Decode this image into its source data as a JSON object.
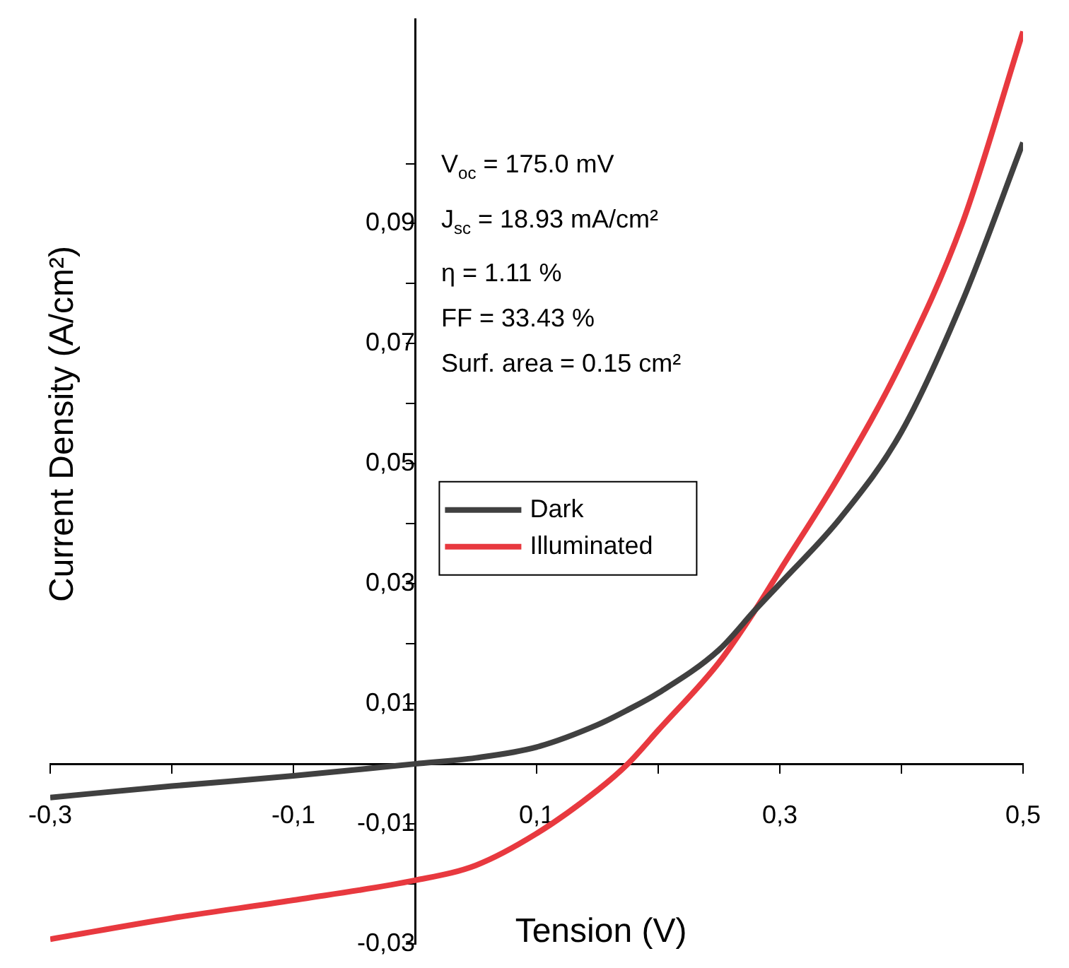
{
  "chart_data": {
    "type": "line",
    "xlabel": "Tension (V)",
    "ylabel": "Current Density (A/cm²)",
    "xlim": [
      -0.3,
      0.5
    ],
    "ylim": [
      -0.03,
      0.124
    ],
    "xticks": [
      {
        "value": -0.3,
        "label": "-0,3"
      },
      {
        "value": -0.2,
        "label": null
      },
      {
        "value": -0.1,
        "label": "-0,1"
      },
      {
        "value": 0,
        "label": null
      },
      {
        "value": 0.1,
        "label": "0,1"
      },
      {
        "value": 0.2,
        "label": null
      },
      {
        "value": 0.3,
        "label": "0,3"
      },
      {
        "value": 0.4,
        "label": null
      },
      {
        "value": 0.5,
        "label": "0,5"
      }
    ],
    "yticks": [
      {
        "value": -0.03,
        "label": "-0,03"
      },
      {
        "value": -0.02,
        "label": null
      },
      {
        "value": -0.01,
        "label": "-0,01"
      },
      {
        "value": 0,
        "label": null
      },
      {
        "value": 0.01,
        "label": "0,01"
      },
      {
        "value": 0.02,
        "label": null
      },
      {
        "value": 0.03,
        "label": "0,03"
      },
      {
        "value": 0.04,
        "label": null
      },
      {
        "value": 0.05,
        "label": "0,05"
      },
      {
        "value": 0.06,
        "label": null
      },
      {
        "value": 0.07,
        "label": "0,07"
      },
      {
        "value": 0.08,
        "label": null
      },
      {
        "value": 0.09,
        "label": "0,09"
      },
      {
        "value": 0.1,
        "label": null
      }
    ],
    "x": [
      -0.3,
      -0.2,
      -0.1,
      0,
      0.05,
      0.1,
      0.15,
      0.175,
      0.2,
      0.25,
      0.28,
      0.3,
      0.35,
      0.4,
      0.45,
      0.5
    ],
    "series": [
      {
        "name": "Dark",
        "color": "#404040",
        "values": [
          -0.0056,
          -0.0037,
          -0.002,
          0,
          0.001,
          0.0028,
          0.0065,
          0.009,
          0.0118,
          0.019,
          0.0257,
          0.03,
          0.041,
          0.0553,
          0.077,
          0.1035
        ]
      },
      {
        "name": "Illuminated",
        "color": "#e8393f",
        "values": [
          -0.0292,
          -0.0257,
          -0.0227,
          -0.0194,
          -0.0169,
          -0.0116,
          -0.0044,
          0,
          0.0056,
          0.0169,
          0.0257,
          0.0322,
          0.0484,
          0.0669,
          0.09,
          0.122
        ]
      }
    ],
    "legend": "center",
    "grid": false,
    "marker": "none",
    "line_style": "solid",
    "annotations": [
      "V$_{oc}$ = 175.0 mV",
      "J$_{sc}$ = 18.93 mA/cm²",
      "η = 1.11 %",
      "FF = 33.43 %",
      "Surf. area = 0.15 cm²"
    ]
  }
}
